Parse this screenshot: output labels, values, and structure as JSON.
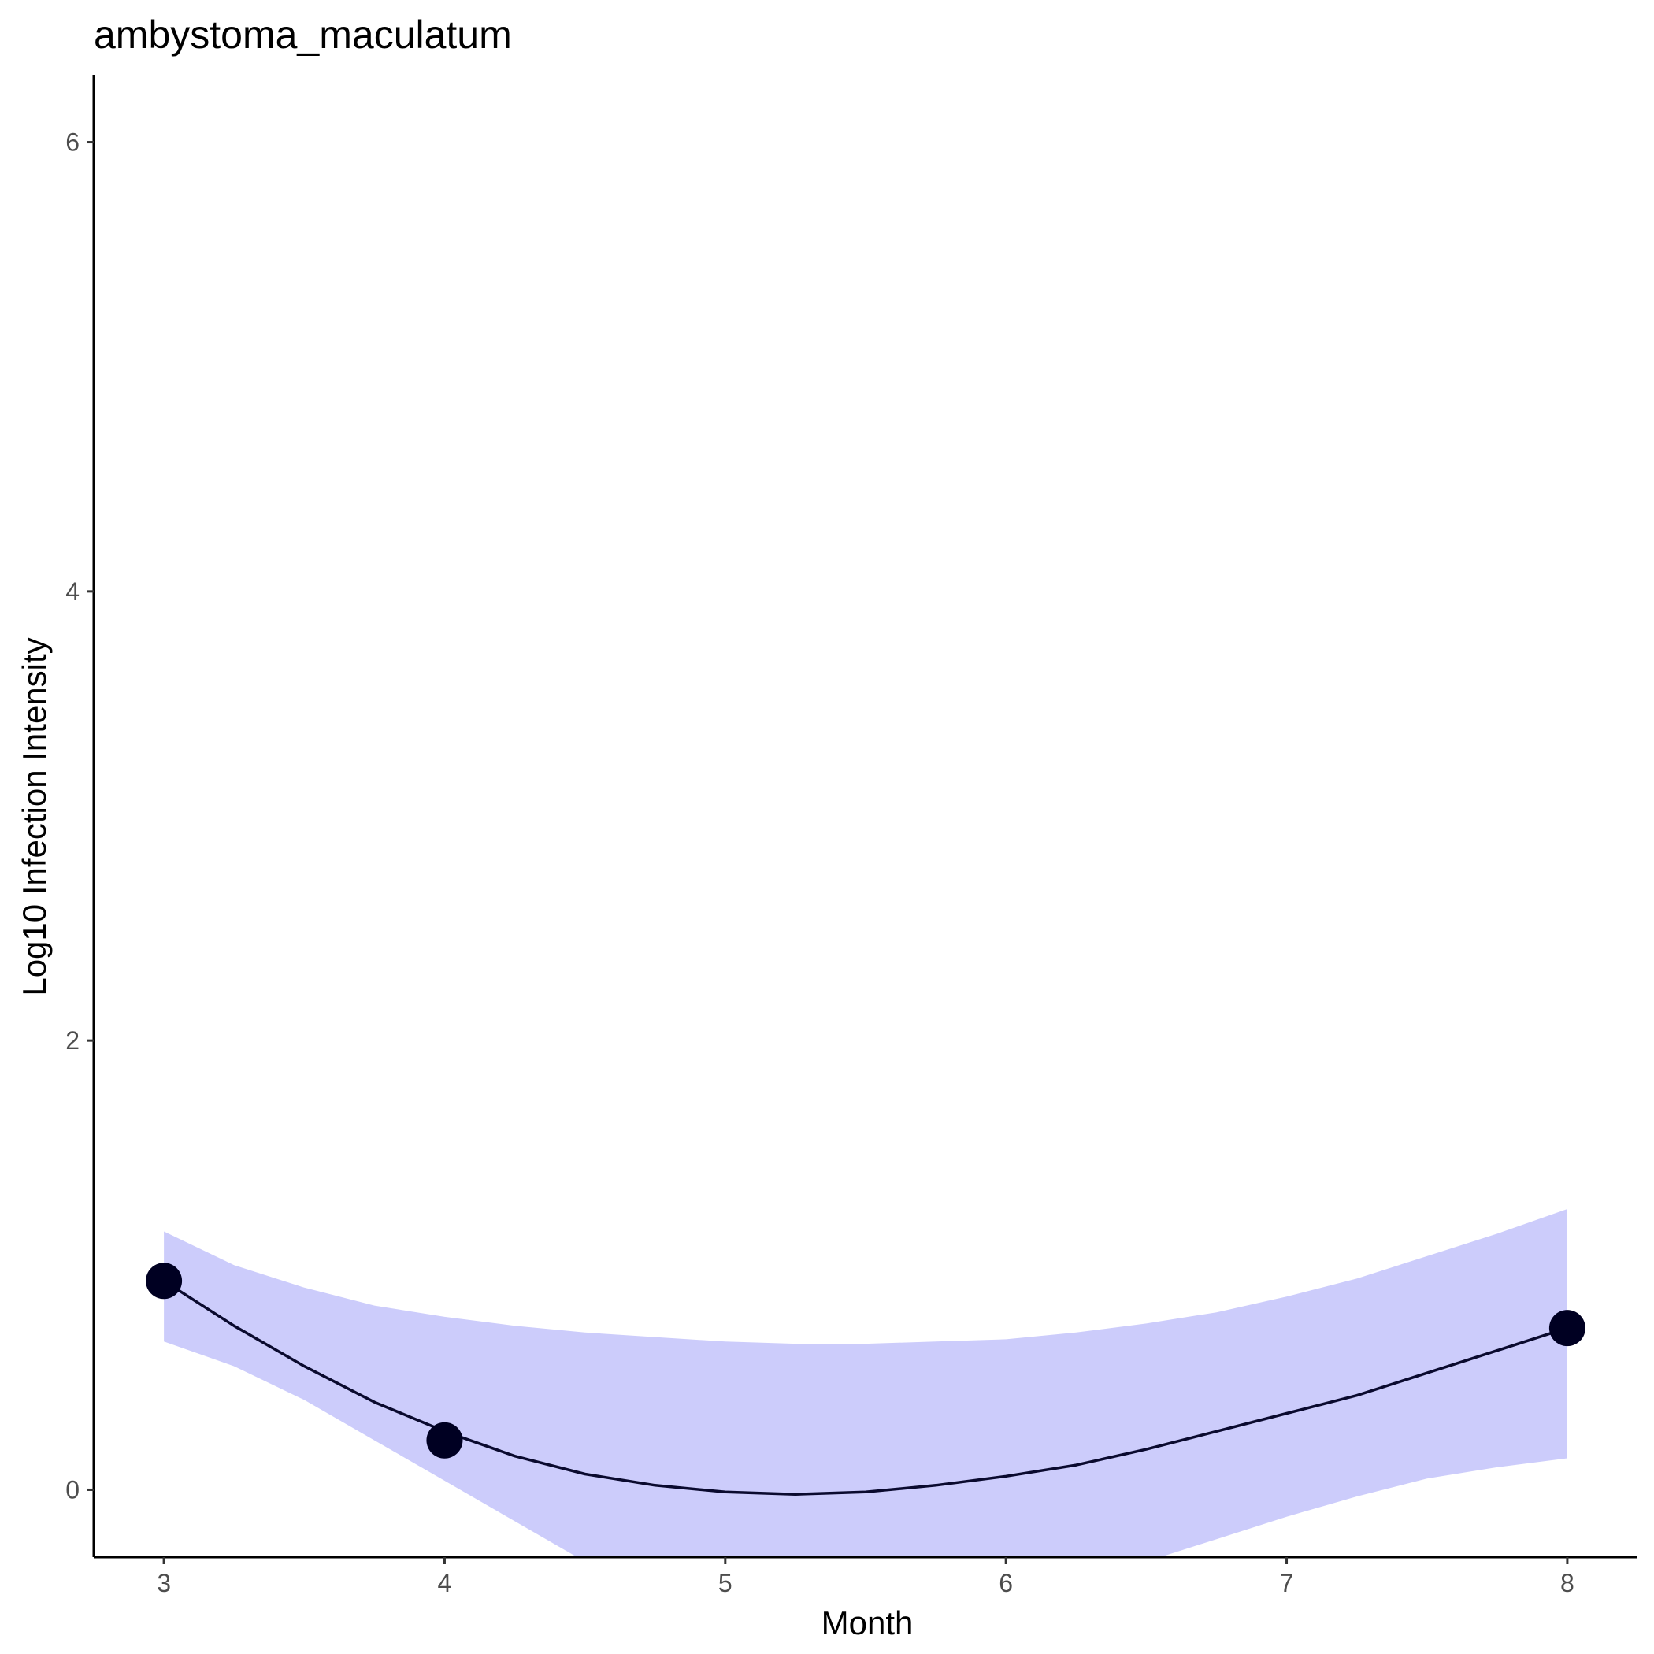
{
  "chart_data": {
    "type": "line",
    "title": "ambystoma_maculatum",
    "xlabel": "Month",
    "ylabel": "Log10 Infection Intensity",
    "xlim": [
      2.75,
      8.25
    ],
    "ylim": [
      -0.3,
      6.3
    ],
    "x_ticks": [
      3,
      4,
      5,
      6,
      7,
      8
    ],
    "y_ticks": [
      0,
      2,
      4,
      6
    ],
    "grid": false,
    "points": {
      "x": [
        3,
        4,
        8
      ],
      "y": [
        0.93,
        0.22,
        0.72
      ]
    },
    "fit": {
      "x": [
        3.0,
        3.25,
        3.5,
        3.75,
        4.0,
        4.25,
        4.5,
        4.75,
        5.0,
        5.25,
        5.5,
        5.75,
        6.0,
        6.25,
        6.5,
        6.75,
        7.0,
        7.25,
        7.5,
        7.75,
        8.0
      ],
      "y": [
        0.93,
        0.73,
        0.55,
        0.39,
        0.26,
        0.15,
        0.07,
        0.02,
        -0.01,
        -0.02,
        -0.01,
        0.02,
        0.06,
        0.11,
        0.18,
        0.26,
        0.34,
        0.42,
        0.52,
        0.62,
        0.72
      ],
      "lower": [
        0.66,
        0.55,
        0.4,
        0.22,
        0.04,
        -0.14,
        -0.32,
        -0.48,
        -0.6,
        -0.66,
        -0.67,
        -0.62,
        -0.54,
        -0.43,
        -0.32,
        -0.22,
        -0.12,
        -0.03,
        0.05,
        0.1,
        0.14
      ],
      "upper": [
        1.15,
        1.0,
        0.9,
        0.82,
        0.77,
        0.73,
        0.7,
        0.68,
        0.66,
        0.65,
        0.65,
        0.66,
        0.67,
        0.7,
        0.74,
        0.79,
        0.86,
        0.94,
        1.04,
        1.14,
        1.25
      ]
    },
    "colors": {
      "line": "#0a0a2e",
      "ribbon": "#ccccfb",
      "points": "#000022",
      "axis": "#000000"
    }
  }
}
